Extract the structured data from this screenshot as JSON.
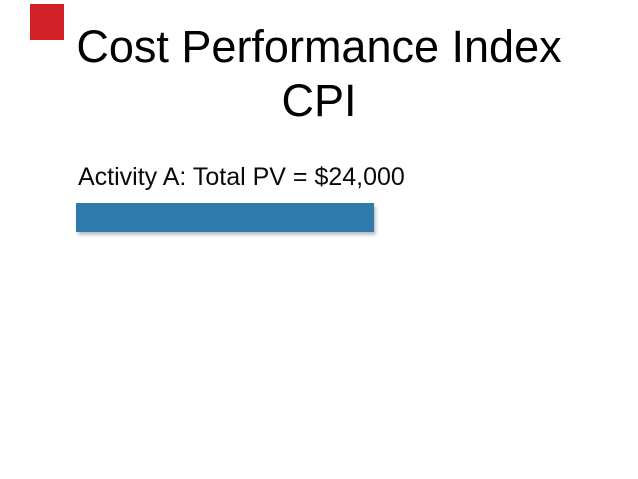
{
  "slide": {
    "title": {
      "line1": "Cost Performance Index",
      "line2": "CPI"
    },
    "body": {
      "activity_label": "Activity A: Total PV = $24,000"
    },
    "colors": {
      "accent_red": "#d02028",
      "bar_blue": "#2e7aab",
      "text_black": "#010101",
      "background": "#ffffff"
    }
  },
  "chart_data": {
    "type": "bar",
    "orientation": "horizontal",
    "categories": [
      "Activity A"
    ],
    "values": [
      24000
    ],
    "value_labels": [
      "$24,000"
    ],
    "title": "Cost Performance Index CPI",
    "xlabel": "",
    "ylabel": "",
    "legend": false,
    "grid": false,
    "notes": "Single illustrative bar on slide representing Activity A Total PV = $24,000"
  }
}
